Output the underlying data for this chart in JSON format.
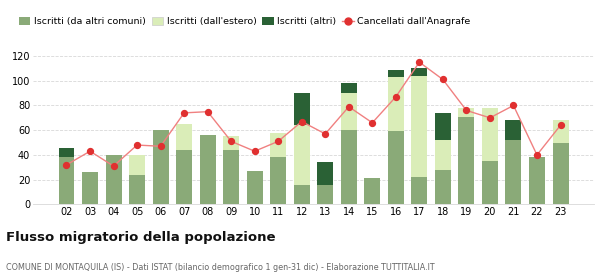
{
  "years": [
    "02",
    "03",
    "04",
    "05",
    "06",
    "07",
    "08",
    "09",
    "10",
    "11",
    "12",
    "13",
    "14",
    "15",
    "16",
    "17",
    "18",
    "19",
    "20",
    "21",
    "22",
    "23"
  ],
  "iscritti_comuni": [
    38,
    26,
    40,
    24,
    60,
    44,
    56,
    44,
    27,
    38,
    16,
    16,
    60,
    21,
    59,
    22,
    28,
    71,
    35,
    52,
    38,
    50
  ],
  "iscritti_estero": [
    0,
    0,
    0,
    16,
    0,
    21,
    0,
    11,
    0,
    20,
    48,
    0,
    30,
    0,
    44,
    82,
    24,
    7,
    43,
    0,
    0,
    18
  ],
  "iscritti_altri": [
    8,
    0,
    0,
    0,
    0,
    0,
    0,
    0,
    0,
    0,
    26,
    18,
    8,
    0,
    6,
    6,
    22,
    0,
    0,
    16,
    0,
    0
  ],
  "cancellati": [
    32,
    43,
    31,
    48,
    47,
    74,
    75,
    51,
    43,
    51,
    67,
    57,
    79,
    66,
    87,
    115,
    101,
    76,
    70,
    80,
    40,
    64
  ],
  "color_comuni": "#8aaa78",
  "color_estero": "#daedb8",
  "color_altri": "#2a6135",
  "color_cancellati": "#e03030",
  "line_color_cancellati": "#f08080",
  "ylim": [
    0,
    120
  ],
  "yticks": [
    0,
    20,
    40,
    60,
    80,
    100,
    120
  ],
  "title": "Flusso migratorio della popolazione",
  "subtitle": "COMUNE DI MONTAQUILA (IS) - Dati ISTAT (bilancio demografico 1 gen-31 dic) - Elaborazione TUTTITALIA.IT",
  "legend_labels": [
    "Iscritti (da altri comuni)",
    "Iscritti (dall'estero)",
    "Iscritti (altri)",
    "Cancellati dall'Anagrafe"
  ],
  "background_color": "#ffffff",
  "grid_color": "#d8d8d8"
}
